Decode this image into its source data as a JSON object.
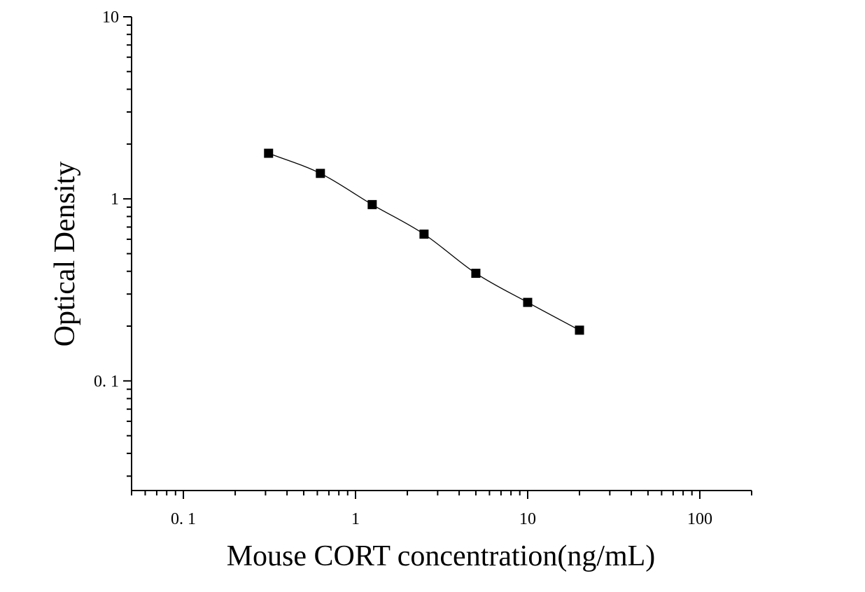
{
  "chart_data": {
    "type": "scatter",
    "title": "",
    "xlabel": "Mouse CORT concentration(ng/mL)",
    "ylabel": "Optical Density",
    "x_scale": "log",
    "y_scale": "log",
    "xlim": [
      0.05,
      200
    ],
    "ylim": [
      0.025,
      10
    ],
    "x_tick_values": [
      0.1,
      1,
      10,
      100
    ],
    "x_tick_labels": [
      "0. 1",
      "1",
      "10",
      "100"
    ],
    "y_tick_values": [
      0.1,
      1,
      10
    ],
    "y_tick_labels": [
      "0. 1",
      "1",
      "10"
    ],
    "grid": false,
    "legend": "none",
    "series": [
      {
        "marker": "square",
        "color": "#000000",
        "fit_curve": true,
        "x": [
          0.3125,
          0.625,
          1.25,
          2.5,
          5,
          10,
          20
        ],
        "y": [
          1.78,
          1.38,
          0.93,
          0.64,
          0.39,
          0.27,
          0.19
        ]
      }
    ]
  }
}
